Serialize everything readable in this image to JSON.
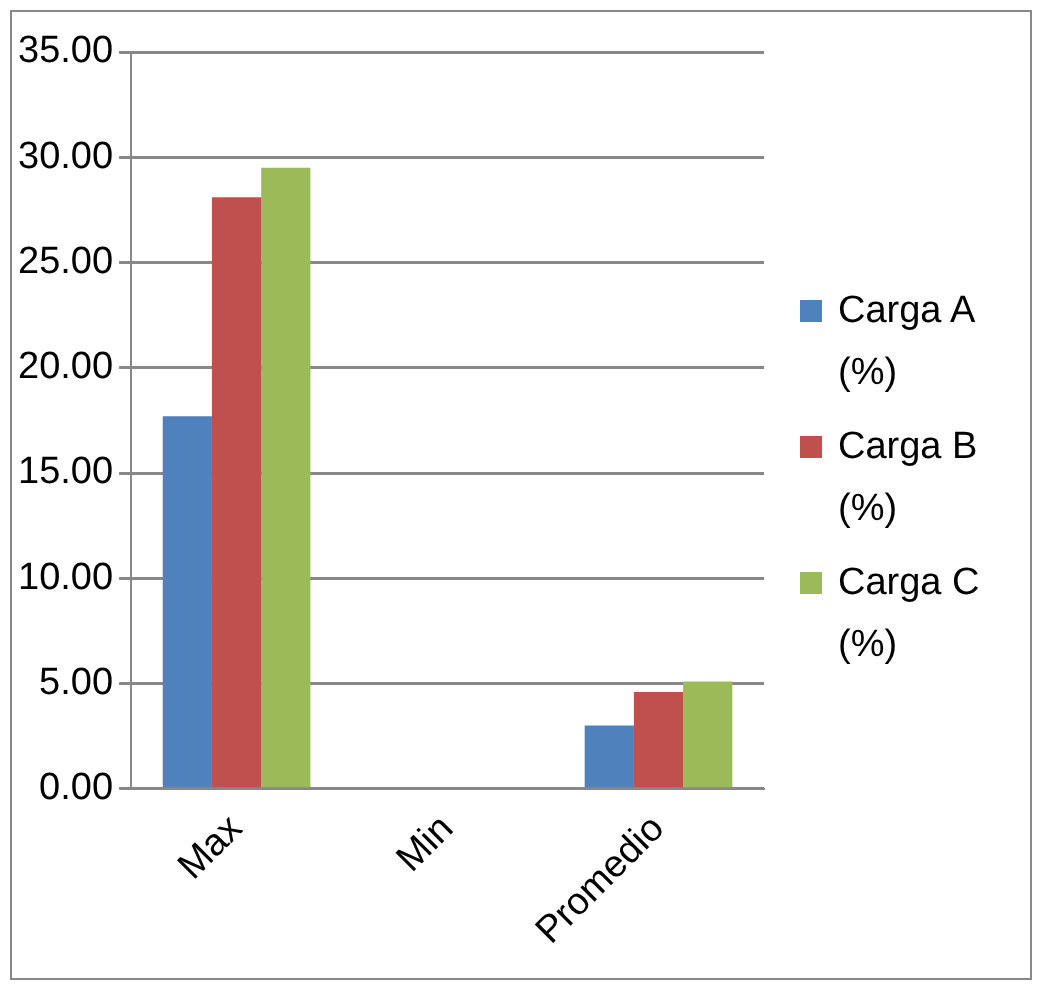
{
  "chart_data": {
    "type": "bar",
    "categories": [
      "Max",
      "Min",
      "Promedio"
    ],
    "series": [
      {
        "name": "Carga A (%)",
        "color": "#4f81bd",
        "values": [
          17.7,
          0,
          3.0
        ]
      },
      {
        "name": "Carga B (%)",
        "color": "#c0504d",
        "values": [
          28.1,
          0,
          4.6
        ]
      },
      {
        "name": "Carga C (%)",
        "color": "#9bbb59",
        "values": [
          29.5,
          0,
          5.1
        ]
      }
    ],
    "ylim": [
      0,
      35
    ],
    "yticks": [
      {
        "value": 0,
        "label": "0.00"
      },
      {
        "value": 5,
        "label": "5.00"
      },
      {
        "value": 10,
        "label": "10.00"
      },
      {
        "value": 15,
        "label": "15.00"
      },
      {
        "value": 20,
        "label": "20.00"
      },
      {
        "value": 25,
        "label": "25.00"
      },
      {
        "value": 30,
        "label": "30.00"
      },
      {
        "value": 35,
        "label": "35.00"
      }
    ],
    "grid": "y",
    "legend": "right"
  }
}
